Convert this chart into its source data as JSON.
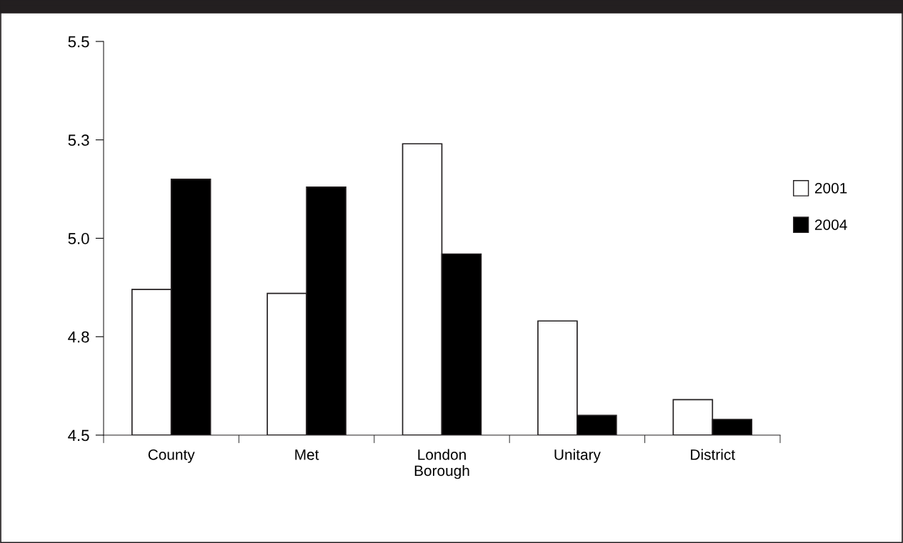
{
  "chart_data": {
    "type": "bar",
    "categories": [
      "County",
      "Met",
      "London\nBorough",
      "Unitary",
      "District"
    ],
    "series": [
      {
        "name": "2001",
        "color": "#ffffff",
        "values": [
          4.87,
          4.86,
          5.24,
          4.79,
          4.59
        ]
      },
      {
        "name": "2004",
        "color": "#000000",
        "values": [
          5.15,
          5.13,
          4.96,
          4.55,
          4.54
        ]
      }
    ],
    "ylim": [
      4.5,
      5.5
    ],
    "yticks": [
      4.5,
      {
        "value": 4.75,
        "label": "4.8"
      },
      {
        "value": 5.0,
        "label": "5.0"
      },
      {
        "value": 5.25,
        "label": "5.3"
      },
      5.5
    ],
    "grid": false,
    "legend": "right"
  }
}
